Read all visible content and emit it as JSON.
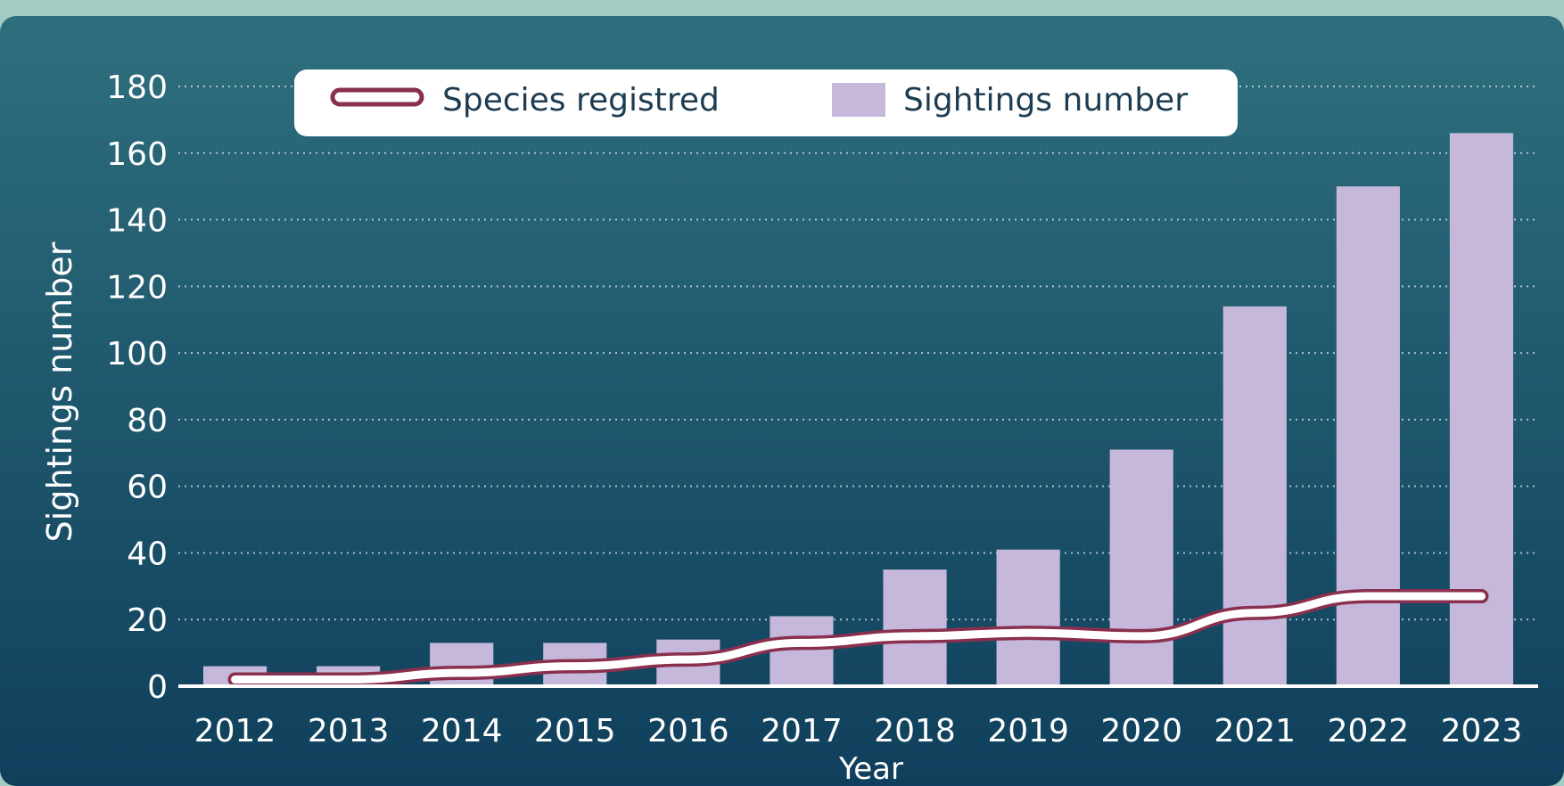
{
  "chart_data": {
    "type": "bar",
    "categories": [
      "2012",
      "2013",
      "2014",
      "2015",
      "2016",
      "2017",
      "2018",
      "2019",
      "2020",
      "2021",
      "2022",
      "2023"
    ],
    "series": [
      {
        "name": "Sightings number",
        "kind": "bar",
        "values": [
          6,
          6,
          13,
          13,
          14,
          21,
          35,
          41,
          71,
          114,
          150,
          166
        ]
      },
      {
        "name": "Species registred",
        "kind": "line",
        "values": [
          2,
          2,
          4,
          6,
          8,
          13,
          15,
          16,
          15,
          22,
          27,
          27
        ]
      }
    ],
    "title": "",
    "xlabel": "Year",
    "ylabel": "Sightings number",
    "ylim": [
      0,
      180
    ],
    "yticks": [
      0,
      20,
      40,
      60,
      80,
      100,
      120,
      140,
      160,
      180
    ],
    "grid": true,
    "legend_position": "top-center",
    "colors": {
      "bar": "#c5b8da",
      "line_outline": "#8a2f4e",
      "line_fill": "#ffffff",
      "background_top": "#2e6f7d",
      "background_bottom": "#0f3f5c",
      "frame": "#a4cbc3",
      "text": "#ffffff",
      "legend_text": "#1d3c52"
    }
  }
}
